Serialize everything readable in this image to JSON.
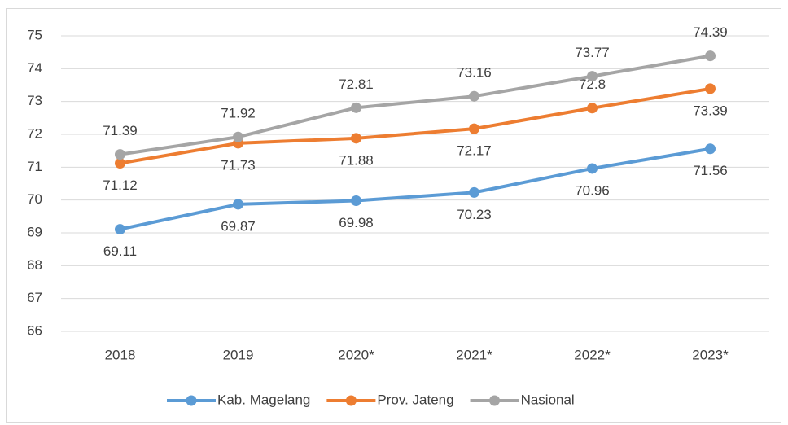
{
  "chart_data": {
    "type": "line",
    "categories": [
      "2018",
      "2019",
      "2020*",
      "2021*",
      "2022*",
      "2023*"
    ],
    "series": [
      {
        "name": "Kab. Magelang",
        "color": "#5b9bd5",
        "values": [
          69.11,
          69.87,
          69.98,
          70.23,
          70.96,
          71.56
        ]
      },
      {
        "name": "Prov. Jateng",
        "color": "#ed7d31",
        "values": [
          71.12,
          71.73,
          71.88,
          72.17,
          72.8,
          73.39
        ]
      },
      {
        "name": "Nasional",
        "color": "#a5a5a5",
        "values": [
          71.39,
          71.92,
          72.81,
          73.16,
          73.77,
          74.39
        ]
      }
    ],
    "ylim": [
      66,
      75
    ],
    "yticks": [
      66,
      67,
      68,
      69,
      70,
      71,
      72,
      73,
      74,
      75
    ],
    "grid": true,
    "legend": "bottom"
  }
}
